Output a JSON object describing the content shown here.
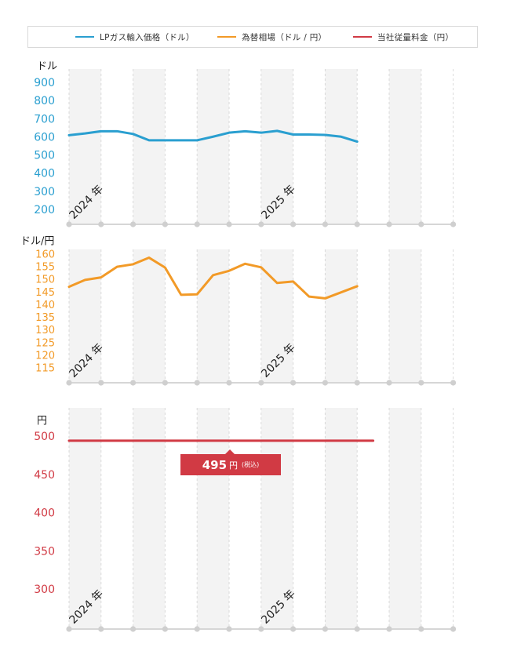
{
  "legend": {
    "items": [
      {
        "label": "LPガス輸入価格（ドル）",
        "color": "#2a9fd0"
      },
      {
        "label": "為替相場（ドル / 円）",
        "color": "#f29a27"
      },
      {
        "label": "当社従量料金（円）",
        "color": "#d13a44"
      }
    ]
  },
  "badge": {
    "value": "495",
    "unit": "円",
    "note": "(税込)"
  },
  "chart_data": [
    {
      "type": "line",
      "ylabel": "ドル",
      "ylim": [
        200,
        900
      ],
      "yticks": [
        900,
        800,
        700,
        600,
        500,
        400,
        300,
        200
      ],
      "color": "#2a9fd0",
      "year_labels": [
        {
          "label": "2024 年",
          "index": 0
        },
        {
          "label": "2025 年",
          "index": 12
        }
      ],
      "values": [
        613,
        623,
        635,
        635,
        620,
        585,
        585,
        585,
        585,
        605,
        627,
        635,
        627,
        637,
        617,
        617,
        615,
        605,
        578
      ]
    },
    {
      "type": "line",
      "ylabel": "ドル/円",
      "ylim": [
        115,
        160
      ],
      "yticks": [
        160,
        155,
        150,
        145,
        140,
        135,
        130,
        125,
        120,
        115
      ],
      "color": "#f29a27",
      "year_labels": [
        {
          "label": "2024 年",
          "index": 0
        },
        {
          "label": "2025 年",
          "index": 12
        }
      ],
      "values": [
        147.4,
        150.1,
        151.1,
        155.3,
        156.3,
        158.9,
        155.0,
        144.2,
        144.4,
        152.0,
        153.7,
        156.5,
        155.1,
        148.9,
        149.5,
        143.5,
        142.8,
        145.2,
        147.6
      ]
    },
    {
      "type": "line",
      "ylabel": "円",
      "ylim": [
        300,
        500
      ],
      "yticks": [
        500,
        450,
        400,
        350,
        300
      ],
      "color": "#d13a44",
      "year_labels": [
        {
          "label": "2024 年",
          "index": 0
        },
        {
          "label": "2025 年",
          "index": 12
        }
      ],
      "values": [
        495,
        495,
        495,
        495,
        495,
        495,
        495,
        495,
        495,
        495,
        495,
        495,
        495,
        495,
        495,
        495,
        495,
        495,
        495,
        495
      ]
    }
  ]
}
